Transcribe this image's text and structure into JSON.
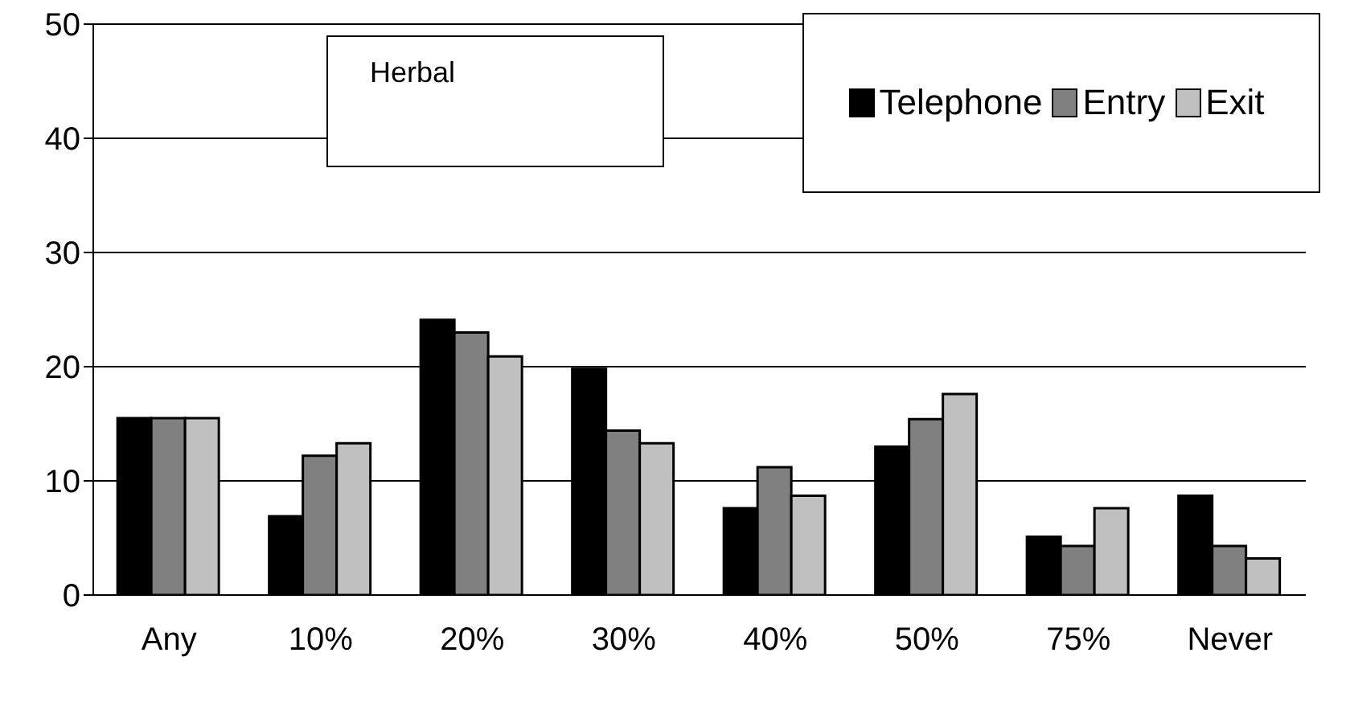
{
  "chart_data": {
    "type": "bar",
    "title": "Herbal",
    "categories": [
      "Any",
      "10%",
      "20%",
      "30%",
      "40%",
      "50%",
      "75%",
      "Never"
    ],
    "series": [
      {
        "name": "Telephone",
        "color": "#000000",
        "values": [
          15.5,
          6.9,
          24.1,
          19.8,
          7.6,
          13.0,
          5.1,
          8.7
        ]
      },
      {
        "name": "Entry",
        "color": "#808080",
        "values": [
          15.5,
          12.2,
          23.0,
          14.4,
          11.2,
          15.4,
          4.3,
          4.3
        ]
      },
      {
        "name": "Exit",
        "color": "#c0c0c0",
        "values": [
          15.5,
          13.3,
          20.9,
          13.3,
          8.7,
          17.6,
          7.6,
          3.2
        ]
      }
    ],
    "ylim": [
      0,
      50
    ],
    "yticks": [
      0,
      10,
      20,
      30,
      40,
      50
    ],
    "grid": "y",
    "legend": "top right"
  }
}
